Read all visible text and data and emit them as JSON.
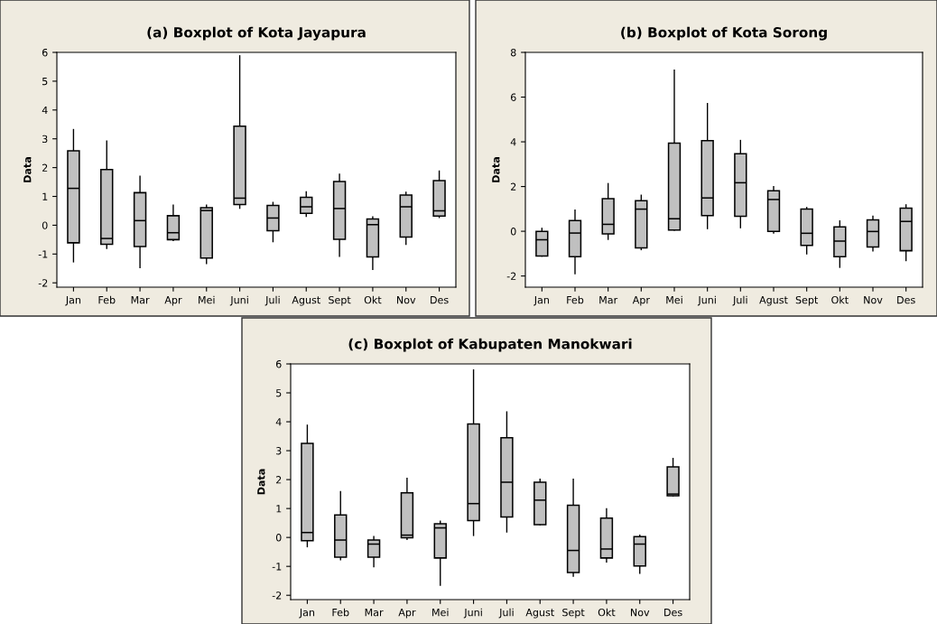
{
  "chart_data": [
    {
      "type": "box",
      "title": "(a) Boxplot of Kota Jayapura",
      "ylabel": "Data",
      "color": "#c0c0c0",
      "categories": [
        "Jan",
        "Feb",
        "Mar",
        "Apr",
        "Mei",
        "Juni",
        "Juli",
        "Agust",
        "Sept",
        "Okt",
        "Nov",
        "Des"
      ],
      "ylim": [
        -2.15,
        6
      ],
      "yticks": [
        -2,
        -1,
        0,
        1,
        2,
        3,
        4,
        5,
        6
      ],
      "grid": false,
      "boxes": [
        {
          "low": -1.27,
          "q1": -0.61,
          "median": 1.28,
          "q3": 2.58,
          "high": 3.32
        },
        {
          "low": -0.8,
          "q1": -0.66,
          "median": -0.46,
          "q3": 1.93,
          "high": 2.92
        },
        {
          "low": -1.47,
          "q1": -0.74,
          "median": 0.16,
          "q3": 1.13,
          "high": 1.7
        },
        {
          "low": -0.53,
          "q1": -0.5,
          "median": -0.26,
          "q3": 0.33,
          "high": 0.7
        },
        {
          "low": -1.33,
          "q1": -1.14,
          "median": 0.51,
          "q3": 0.61,
          "high": 0.7
        },
        {
          "low": 0.59,
          "q1": 0.72,
          "median": 0.94,
          "q3": 3.44,
          "high": 5.88
        },
        {
          "low": -0.57,
          "q1": -0.19,
          "median": 0.25,
          "q3": 0.69,
          "high": 0.79
        },
        {
          "low": 0.31,
          "q1": 0.41,
          "median": 0.64,
          "q3": 0.97,
          "high": 1.16
        },
        {
          "low": -1.08,
          "q1": -0.49,
          "median": 0.58,
          "q3": 1.52,
          "high": 1.77
        },
        {
          "low": -1.53,
          "q1": -1.1,
          "median": 0.02,
          "q3": 0.22,
          "high": 0.29
        },
        {
          "low": -0.66,
          "q1": -0.41,
          "median": 0.64,
          "q3": 1.05,
          "high": 1.14
        },
        {
          "low": 0.27,
          "q1": 0.32,
          "median": 0.5,
          "q3": 1.55,
          "high": 1.88
        }
      ]
    },
    {
      "type": "box",
      "title": "(b) Boxplot of Kota Sorong",
      "ylabel": "Data",
      "color": "#c0c0c0",
      "categories": [
        "Jan",
        "Feb",
        "Mar",
        "Apr",
        "Mei",
        "Juni",
        "Juli",
        "Agust",
        "Sept",
        "Okt",
        "Nov",
        "Des"
      ],
      "ylim": [
        -2.5,
        8
      ],
      "yticks": [
        -2,
        0,
        2,
        4,
        6,
        8
      ],
      "grid": false,
      "boxes": [
        {
          "low": -1.11,
          "q1": -1.11,
          "median": -0.38,
          "q3": -0.01,
          "high": 0.13
        },
        {
          "low": -1.9,
          "q1": -1.14,
          "median": -0.08,
          "q3": 0.48,
          "high": 0.94
        },
        {
          "low": -0.36,
          "q1": -0.12,
          "median": 0.31,
          "q3": 1.46,
          "high": 2.13
        },
        {
          "low": -0.82,
          "q1": -0.74,
          "median": 0.99,
          "q3": 1.37,
          "high": 1.61
        },
        {
          "low": 0.05,
          "q1": 0.05,
          "median": 0.56,
          "q3": 3.94,
          "high": 7.2
        },
        {
          "low": 0.12,
          "q1": 0.7,
          "median": 1.49,
          "q3": 4.05,
          "high": 5.71
        },
        {
          "low": 0.16,
          "q1": 0.67,
          "median": 2.17,
          "q3": 3.47,
          "high": 4.06
        },
        {
          "low": -0.08,
          "q1": -0.01,
          "median": 1.42,
          "q3": 1.81,
          "high": 2.0
        },
        {
          "low": -1.01,
          "q1": -0.63,
          "median": -0.09,
          "q3": 0.99,
          "high": 1.06
        },
        {
          "low": -1.61,
          "q1": -1.14,
          "median": -0.44,
          "q3": 0.2,
          "high": 0.46
        },
        {
          "low": -0.88,
          "q1": -0.7,
          "median": -0.01,
          "q3": 0.51,
          "high": 0.67
        },
        {
          "low": -1.31,
          "q1": -0.87,
          "median": 0.44,
          "q3": 1.03,
          "high": 1.18
        }
      ]
    },
    {
      "type": "box",
      "title": "(c) Boxplot of Kabupaten Manokwari",
      "ylabel": "Data",
      "color": "#c0c0c0",
      "categories": [
        "Jan",
        "Feb",
        "Mar",
        "Apr",
        "Mei",
        "Juni",
        "Juli",
        "Agust",
        "Sept",
        "Okt",
        "Nov",
        "Des"
      ],
      "ylim": [
        -2.15,
        6
      ],
      "yticks": [
        -2,
        -1,
        0,
        1,
        2,
        3,
        4,
        5,
        6
      ],
      "grid": false,
      "boxes": [
        {
          "low": -0.32,
          "q1": -0.11,
          "median": 0.17,
          "q3": 3.25,
          "high": 3.88
        },
        {
          "low": -0.77,
          "q1": -0.68,
          "median": -0.09,
          "q3": 0.78,
          "high": 1.58
        },
        {
          "low": -1.01,
          "q1": -0.68,
          "median": -0.23,
          "q3": -0.09,
          "high": 0.03
        },
        {
          "low": -0.07,
          "q1": -0.01,
          "median": 0.08,
          "q3": 1.54,
          "high": 2.04
        },
        {
          "low": -1.65,
          "q1": -0.71,
          "median": 0.33,
          "q3": 0.47,
          "high": 0.56
        },
        {
          "low": 0.07,
          "q1": 0.58,
          "median": 1.17,
          "q3": 3.92,
          "high": 5.79
        },
        {
          "low": 0.19,
          "q1": 0.71,
          "median": 1.91,
          "q3": 3.45,
          "high": 4.34
        },
        {
          "low": 0.44,
          "q1": 0.44,
          "median": 1.29,
          "q3": 1.91,
          "high": 2.01
        },
        {
          "low": -1.34,
          "q1": -1.21,
          "median": -0.45,
          "q3": 1.11,
          "high": 2.01
        },
        {
          "low": -0.85,
          "q1": -0.71,
          "median": -0.4,
          "q3": 0.67,
          "high": 0.99
        },
        {
          "low": -1.24,
          "q1": -0.99,
          "median": -0.23,
          "q3": 0.03,
          "high": 0.08
        },
        {
          "low": 1.44,
          "q1": 1.44,
          "median": 1.5,
          "q3": 2.44,
          "high": 2.73
        }
      ]
    }
  ]
}
